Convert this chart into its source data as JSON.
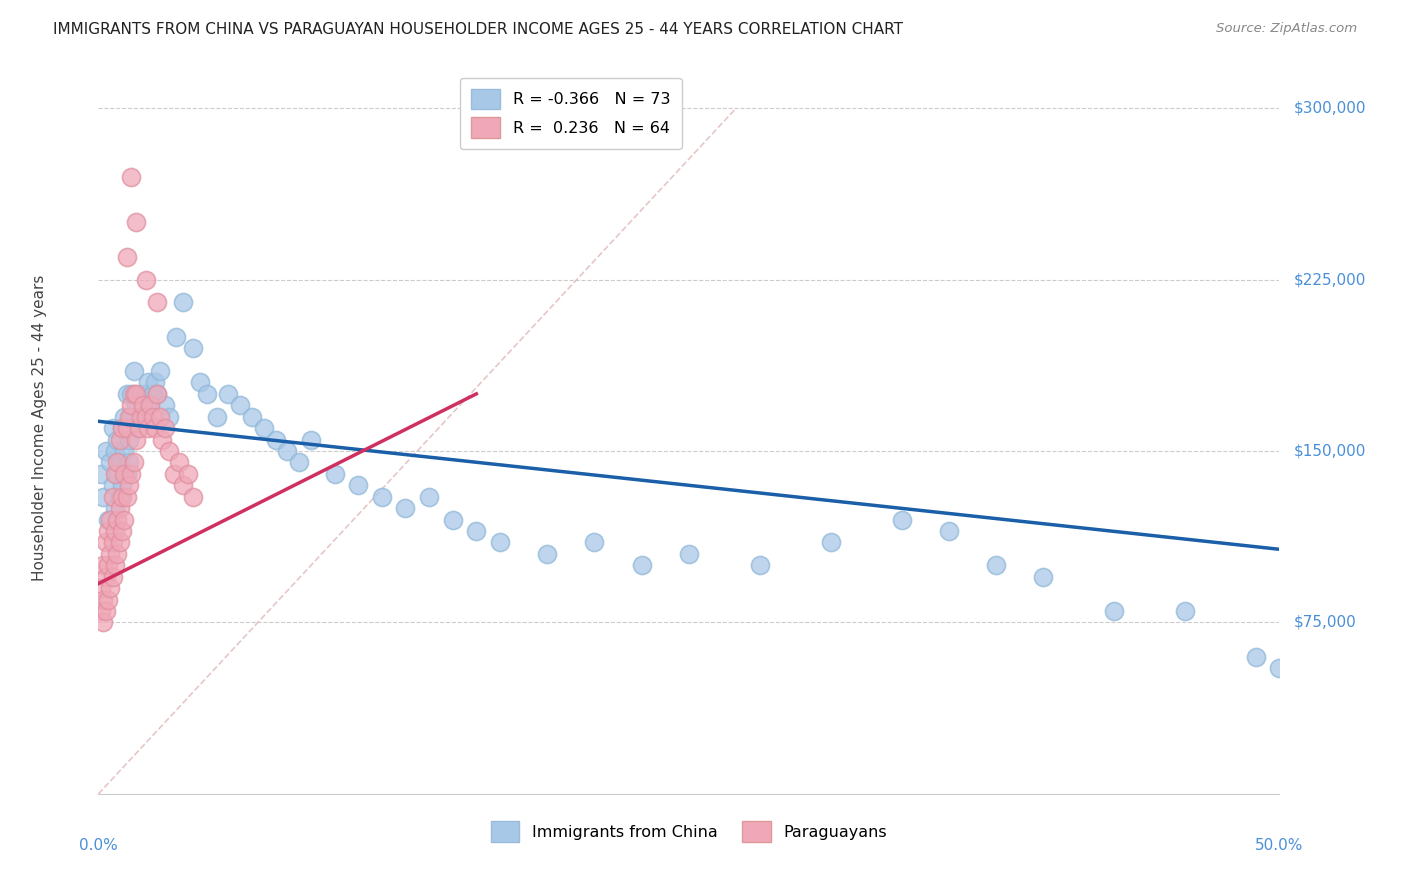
{
  "title": "IMMIGRANTS FROM CHINA VS PARAGUAYAN HOUSEHOLDER INCOME AGES 25 - 44 YEARS CORRELATION CHART",
  "source": "Source: ZipAtlas.com",
  "ylabel": "Householder Income Ages 25 - 44 years",
  "xlim": [
    0.0,
    0.5
  ],
  "ylim": [
    0,
    320000
  ],
  "yticks": [
    0,
    75000,
    150000,
    225000,
    300000
  ],
  "ytick_labels": [
    "",
    "$75,000",
    "$150,000",
    "$225,000",
    "$300,000"
  ],
  "legend_r1": "R = -0.366",
  "legend_n1": "N = 73",
  "legend_r2": "R =  0.236",
  "legend_n2": "N = 64",
  "color_blue": "#a8c8e8",
  "color_blue_edge": "#90b8d8",
  "color_blue_line": "#1a5fa8",
  "color_pink": "#f0a8b8",
  "color_pink_edge": "#e090a0",
  "color_pink_line": "#d03060",
  "color_dashed": "#e0b8b8",
  "background_color": "#ffffff",
  "grid_color": "#cccccc",
  "blue_scatter_x": [
    0.001,
    0.002,
    0.003,
    0.004,
    0.005,
    0.006,
    0.006,
    0.007,
    0.007,
    0.008,
    0.008,
    0.009,
    0.009,
    0.01,
    0.01,
    0.011,
    0.011,
    0.012,
    0.012,
    0.013,
    0.013,
    0.014,
    0.014,
    0.015,
    0.016,
    0.017,
    0.018,
    0.019,
    0.02,
    0.021,
    0.022,
    0.023,
    0.024,
    0.025,
    0.026,
    0.028,
    0.03,
    0.033,
    0.036,
    0.04,
    0.043,
    0.046,
    0.05,
    0.055,
    0.06,
    0.065,
    0.07,
    0.075,
    0.08,
    0.085,
    0.09,
    0.1,
    0.11,
    0.12,
    0.13,
    0.14,
    0.15,
    0.16,
    0.17,
    0.19,
    0.21,
    0.23,
    0.25,
    0.28,
    0.31,
    0.34,
    0.36,
    0.38,
    0.4,
    0.43,
    0.46,
    0.49,
    0.5
  ],
  "blue_scatter_y": [
    140000,
    130000,
    150000,
    120000,
    145000,
    135000,
    160000,
    125000,
    150000,
    140000,
    155000,
    130000,
    145000,
    160000,
    135000,
    150000,
    165000,
    140000,
    175000,
    155000,
    145000,
    165000,
    175000,
    185000,
    170000,
    160000,
    175000,
    165000,
    175000,
    180000,
    170000,
    175000,
    180000,
    175000,
    185000,
    170000,
    165000,
    200000,
    215000,
    195000,
    180000,
    175000,
    165000,
    175000,
    170000,
    165000,
    160000,
    155000,
    150000,
    145000,
    155000,
    140000,
    135000,
    130000,
    125000,
    130000,
    120000,
    115000,
    110000,
    105000,
    110000,
    100000,
    105000,
    100000,
    110000,
    120000,
    115000,
    100000,
    95000,
    80000,
    80000,
    60000,
    55000
  ],
  "pink_scatter_x": [
    0.001,
    0.001,
    0.002,
    0.002,
    0.002,
    0.003,
    0.003,
    0.003,
    0.004,
    0.004,
    0.004,
    0.005,
    0.005,
    0.005,
    0.006,
    0.006,
    0.006,
    0.007,
    0.007,
    0.007,
    0.008,
    0.008,
    0.008,
    0.009,
    0.009,
    0.009,
    0.01,
    0.01,
    0.01,
    0.011,
    0.011,
    0.012,
    0.012,
    0.013,
    0.013,
    0.014,
    0.014,
    0.015,
    0.015,
    0.016,
    0.016,
    0.017,
    0.018,
    0.019,
    0.02,
    0.021,
    0.022,
    0.023,
    0.024,
    0.025,
    0.026,
    0.027,
    0.028,
    0.03,
    0.032,
    0.034,
    0.036,
    0.038,
    0.04,
    0.014,
    0.016,
    0.012,
    0.02,
    0.025
  ],
  "pink_scatter_y": [
    80000,
    90000,
    75000,
    85000,
    100000,
    80000,
    95000,
    110000,
    85000,
    100000,
    115000,
    90000,
    105000,
    120000,
    95000,
    110000,
    130000,
    100000,
    115000,
    140000,
    105000,
    120000,
    145000,
    110000,
    125000,
    155000,
    115000,
    130000,
    160000,
    120000,
    140000,
    130000,
    160000,
    135000,
    165000,
    140000,
    170000,
    145000,
    175000,
    155000,
    175000,
    160000,
    165000,
    170000,
    165000,
    160000,
    170000,
    165000,
    160000,
    175000,
    165000,
    155000,
    160000,
    150000,
    140000,
    145000,
    135000,
    140000,
    130000,
    270000,
    250000,
    235000,
    225000,
    215000
  ],
  "blue_line_x": [
    0.0,
    0.5
  ],
  "blue_line_y": [
    163000,
    107000
  ],
  "pink_line_x": [
    0.0,
    0.16
  ],
  "pink_line_y": [
    92000,
    175000
  ],
  "dashed_line_x": [
    0.0,
    0.27
  ],
  "dashed_line_y": [
    0,
    300000
  ]
}
